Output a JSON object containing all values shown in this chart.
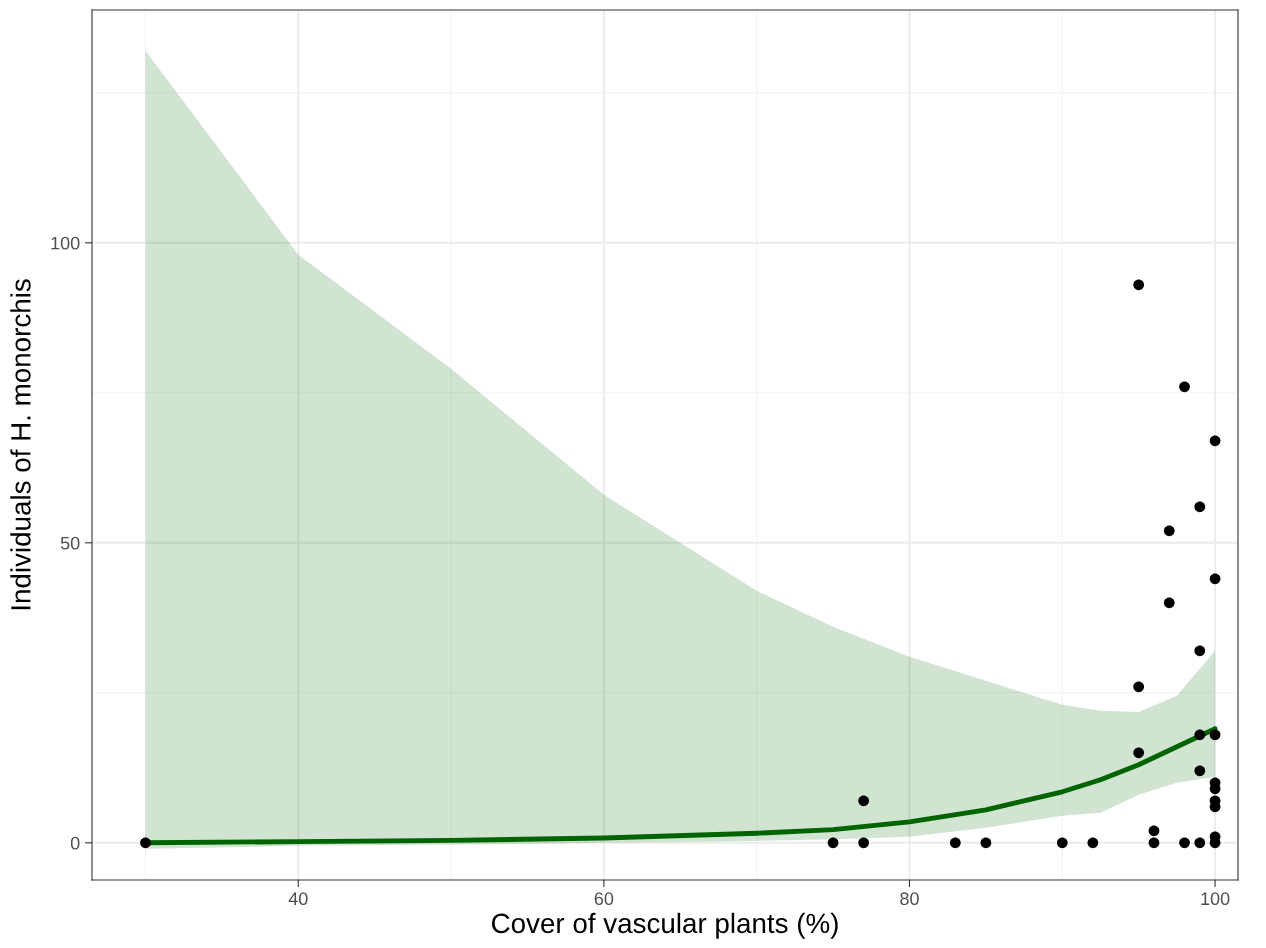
{
  "chart_data": {
    "type": "scatter",
    "xlabel": "Cover of vascular plants (%)",
    "ylabel": "Individuals of H. monorchis",
    "xlim": [
      26.5,
      101.5
    ],
    "ylim": [
      -6.2,
      138.8
    ],
    "xticks": [
      40,
      60,
      80,
      100
    ],
    "yticks": [
      0,
      50,
      100
    ],
    "grid": true,
    "series": [
      {
        "marker": "circle",
        "color": "#000000",
        "x": [
          30,
          75,
          77,
          77,
          83,
          85,
          90,
          92,
          95,
          95,
          95,
          96,
          96,
          97,
          97,
          98,
          98,
          99,
          99,
          99,
          99,
          99,
          100,
          100,
          100,
          100,
          100,
          100,
          100,
          100,
          100
        ],
        "values": [
          0,
          0,
          0,
          7,
          0,
          0,
          0,
          0,
          93,
          26,
          15,
          2,
          0,
          52,
          40,
          76,
          0,
          56,
          32,
          18,
          12,
          0,
          67,
          44,
          18,
          10,
          9,
          7,
          6,
          1,
          0
        ]
      },
      {
        "type": "line",
        "marker": "none",
        "color": "#006400",
        "x": [
          30,
          40,
          50,
          60,
          70,
          75,
          80,
          85,
          90,
          92.5,
          95,
          97.5,
          100
        ],
        "values": [
          0,
          0.2,
          0.4,
          0.8,
          1.6,
          2.2,
          3.5,
          5.5,
          8.5,
          10.5,
          13,
          16,
          19
        ],
        "lower": [
          -1,
          -0.5,
          -0.3,
          0,
          0.3,
          0.6,
          1,
          2.5,
          4.5,
          5,
          8,
          10,
          11
        ],
        "upper": [
          132,
          98,
          79,
          58,
          42,
          36,
          31,
          27,
          23,
          22,
          21.8,
          24.5,
          32
        ]
      }
    ]
  }
}
